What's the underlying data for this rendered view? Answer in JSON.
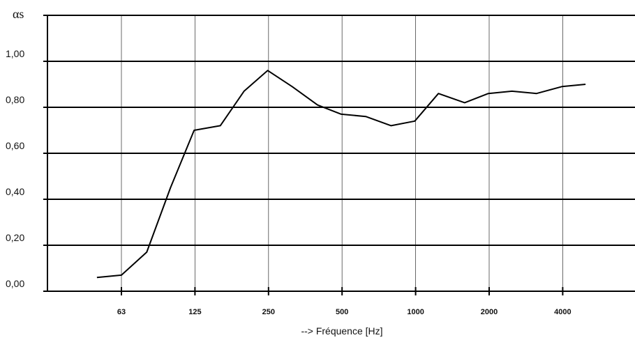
{
  "chart_data": {
    "type": "line",
    "ylabel": "αs",
    "xlabel": "--> Fréquence [Hz]",
    "x_tick_labels": [
      "63",
      "125",
      "250",
      "500",
      "1000",
      "2000",
      "4000"
    ],
    "y_tick_labels": [
      "0,00",
      "0,20",
      "0,40",
      "0,60",
      "0,80",
      "1,00"
    ],
    "ylim": [
      0,
      1.2
    ],
    "grid": true,
    "x": [
      50,
      63,
      80,
      100,
      125,
      160,
      200,
      250,
      315,
      400,
      500,
      630,
      800,
      1000,
      1250,
      1600,
      2000,
      2500,
      3150,
      4000,
      5000
    ],
    "series": [
      {
        "values": [
          0.06,
          0.07,
          0.17,
          0.45,
          0.7,
          0.72,
          0.87,
          0.96,
          0.89,
          0.81,
          0.77,
          0.76,
          0.72,
          0.74,
          0.86,
          0.82,
          0.86,
          0.87,
          0.86,
          0.89,
          0.9
        ]
      }
    ]
  }
}
